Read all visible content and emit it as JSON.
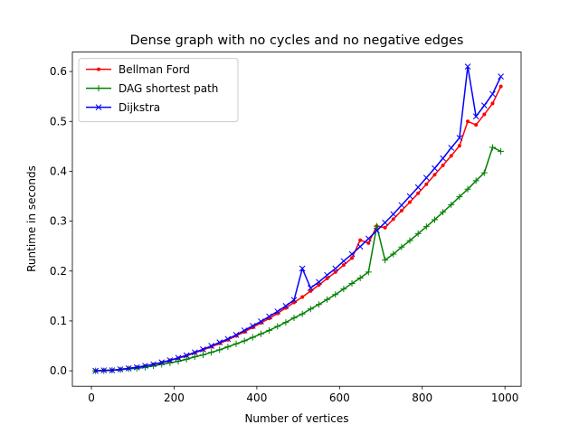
{
  "chart_data": {
    "type": "line",
    "title": "Dense graph with no cycles and no negative edges",
    "xlabel": "Number of vertices",
    "ylabel": "Runtime in seconds",
    "x": [
      10,
      30,
      50,
      70,
      90,
      110,
      130,
      150,
      170,
      190,
      210,
      230,
      250,
      270,
      290,
      310,
      330,
      350,
      370,
      390,
      410,
      430,
      450,
      470,
      490,
      510,
      530,
      550,
      570,
      590,
      610,
      630,
      650,
      670,
      690,
      710,
      730,
      750,
      770,
      790,
      810,
      830,
      850,
      870,
      890,
      910,
      930,
      950,
      970,
      990
    ],
    "series": [
      {
        "name": "Bellman Ford",
        "color": "#ff0000",
        "marker": "dot",
        "values": [
          0.0,
          0.001,
          0.001,
          0.003,
          0.005,
          0.007,
          0.01,
          0.013,
          0.016,
          0.021,
          0.025,
          0.03,
          0.036,
          0.042,
          0.048,
          0.055,
          0.062,
          0.07,
          0.078,
          0.087,
          0.096,
          0.105,
          0.115,
          0.126,
          0.137,
          0.148,
          0.16,
          0.172,
          0.185,
          0.198,
          0.212,
          0.226,
          0.262,
          0.256,
          0.29,
          0.287,
          0.304,
          0.321,
          0.338,
          0.356,
          0.374,
          0.393,
          0.412,
          0.431,
          0.451,
          0.5,
          0.493,
          0.514,
          0.536,
          0.57
        ]
      },
      {
        "name": "DAG shortest path",
        "color": "#008000",
        "marker": "plus",
        "values": [
          0.0,
          0.0,
          0.001,
          0.002,
          0.004,
          0.005,
          0.007,
          0.01,
          0.013,
          0.016,
          0.019,
          0.023,
          0.028,
          0.032,
          0.037,
          0.042,
          0.048,
          0.054,
          0.06,
          0.067,
          0.074,
          0.081,
          0.089,
          0.097,
          0.106,
          0.114,
          0.124,
          0.133,
          0.143,
          0.153,
          0.164,
          0.175,
          0.186,
          0.198,
          0.29,
          0.222,
          0.234,
          0.248,
          0.261,
          0.275,
          0.289,
          0.303,
          0.318,
          0.333,
          0.349,
          0.364,
          0.381,
          0.397,
          0.448,
          0.44
        ]
      },
      {
        "name": "Dijkstra",
        "color": "#0000ff",
        "marker": "x",
        "values": [
          0.0,
          0.001,
          0.001,
          0.003,
          0.005,
          0.007,
          0.01,
          0.013,
          0.017,
          0.021,
          0.026,
          0.031,
          0.037,
          0.043,
          0.05,
          0.057,
          0.064,
          0.072,
          0.081,
          0.09,
          0.099,
          0.109,
          0.119,
          0.13,
          0.142,
          0.205,
          0.166,
          0.178,
          0.192,
          0.205,
          0.22,
          0.234,
          0.249,
          0.265,
          0.281,
          0.297,
          0.314,
          0.332,
          0.35,
          0.368,
          0.387,
          0.406,
          0.426,
          0.447,
          0.467,
          0.61,
          0.51,
          0.532,
          0.555,
          0.59
        ]
      }
    ],
    "xlim": [
      -46,
      1039
    ],
    "xticks": [
      0,
      200,
      400,
      600,
      800,
      1000
    ],
    "ylim": [
      -0.031,
      0.639
    ],
    "yticks": [
      {
        "value": 0,
        "label": "0.0"
      },
      {
        "value": 0.1,
        "label": "0.1"
      },
      {
        "value": 0.2,
        "label": "0.2"
      },
      {
        "value": 0.3,
        "label": "0.3"
      },
      {
        "value": 0.4,
        "label": "0.4"
      },
      {
        "value": 0.5,
        "label": "0.5"
      },
      {
        "value": 0.6,
        "label": "0.6"
      }
    ],
    "legend": "upper left",
    "grid": false
  }
}
